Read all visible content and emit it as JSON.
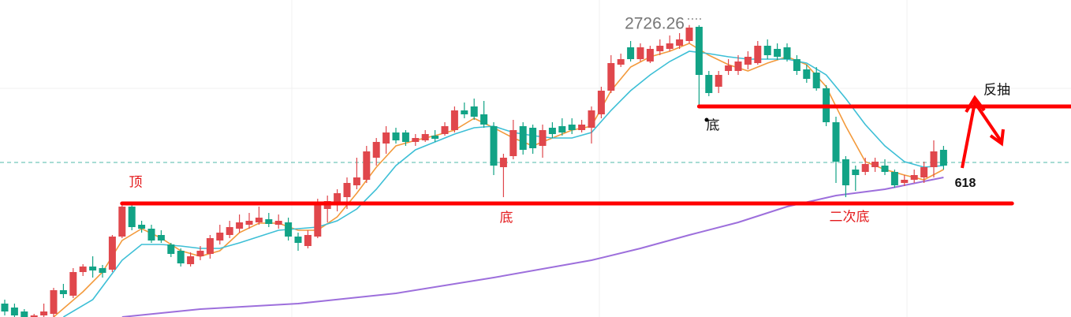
{
  "chart_data": {
    "type": "candlestick",
    "ylim": [
      2356,
      2758
    ],
    "up_color": "#e0474c",
    "down_color": "#12a386",
    "open": [
      2373,
      2368,
      2363,
      2348,
      2358,
      2360,
      2390,
      2383,
      2413,
      2420,
      2418,
      2416,
      2458,
      2496,
      2473,
      2468,
      2460,
      2448,
      2440,
      2423,
      2433,
      2436,
      2453,
      2460,
      2468,
      2473,
      2476,
      2480,
      2473,
      2476,
      2458,
      2446,
      2458,
      2493,
      2500,
      2508,
      2523,
      2530,
      2558,
      2576,
      2590,
      2590,
      2578,
      2580,
      2586,
      2588,
      2593,
      2618,
      2623,
      2613,
      2598,
      2546,
      2560,
      2598,
      2596,
      2573,
      2596,
      2598,
      2600,
      2593,
      2596,
      2613,
      2643,
      2676,
      2698,
      2683,
      2680,
      2693,
      2696,
      2700,
      2706,
      2724,
      2663,
      2648,
      2668,
      2668,
      2676,
      2678,
      2700,
      2696,
      2698,
      2683,
      2670,
      2666,
      2646,
      2603,
      2556,
      2543,
      2540,
      2546,
      2548,
      2540,
      2526,
      2530,
      2533,
      2546,
      2568
    ],
    "high": [
      2378,
      2373,
      2366,
      2360,
      2373,
      2393,
      2398,
      2418,
      2423,
      2433,
      2422,
      2460,
      2500,
      2500,
      2478,
      2473,
      2466,
      2450,
      2443,
      2438,
      2446,
      2460,
      2473,
      2478,
      2486,
      2488,
      2496,
      2488,
      2486,
      2482,
      2463,
      2466,
      2506,
      2510,
      2518,
      2533,
      2558,
      2573,
      2583,
      2598,
      2596,
      2593,
      2588,
      2593,
      2593,
      2603,
      2623,
      2628,
      2633,
      2630,
      2603,
      2563,
      2606,
      2603,
      2600,
      2600,
      2603,
      2608,
      2608,
      2606,
      2623,
      2648,
      2688,
      2690,
      2706,
      2703,
      2700,
      2708,
      2713,
      2716,
      2726.26,
      2726,
      2668,
      2668,
      2683,
      2688,
      2693,
      2706,
      2708,
      2703,
      2703,
      2688,
      2676,
      2673,
      2650,
      2610,
      2560,
      2548,
      2558,
      2558,
      2556,
      2543,
      2536,
      2543,
      2553,
      2580,
      2573
    ],
    "low": [
      2358,
      2354,
      2346,
      2343,
      2356,
      2356,
      2380,
      2380,
      2408,
      2406,
      2406,
      2413,
      2456,
      2466,
      2463,
      2450,
      2450,
      2432,
      2420,
      2420,
      2428,
      2430,
      2448,
      2456,
      2463,
      2468,
      2473,
      2470,
      2468,
      2453,
      2440,
      2443,
      2456,
      2476,
      2490,
      2493,
      2518,
      2526,
      2548,
      2563,
      2576,
      2573,
      2573,
      2578,
      2578,
      2586,
      2590,
      2608,
      2606,
      2596,
      2536,
      2508,
      2556,
      2562,
      2563,
      2558,
      2583,
      2586,
      2588,
      2590,
      2576,
      2608,
      2640,
      2673,
      2680,
      2680,
      2678,
      2688,
      2693,
      2696,
      2703,
      2623,
      2636,
      2640,
      2663,
      2663,
      2670,
      2676,
      2683,
      2682,
      2680,
      2663,
      2653,
      2643,
      2598,
      2526,
      2508,
      2516,
      2536,
      2540,
      2536,
      2520,
      2522,
      2526,
      2526,
      2533,
      2543
    ],
    "close": [
      2363,
      2358,
      2350,
      2358,
      2363,
      2390,
      2385,
      2413,
      2420,
      2415,
      2412,
      2458,
      2496,
      2470,
      2468,
      2453,
      2453,
      2436,
      2424,
      2433,
      2440,
      2456,
      2463,
      2470,
      2476,
      2478,
      2482,
      2474,
      2478,
      2458,
      2450,
      2460,
      2500,
      2503,
      2513,
      2526,
      2533,
      2566,
      2578,
      2590,
      2580,
      2578,
      2583,
      2588,
      2582,
      2598,
      2618,
      2613,
      2610,
      2600,
      2548,
      2558,
      2593,
      2568,
      2570,
      2593,
      2588,
      2590,
      2593,
      2600,
      2618,
      2643,
      2678,
      2683,
      2683,
      2698,
      2696,
      2700,
      2703,
      2708,
      2723,
      2663,
      2640,
      2663,
      2675,
      2680,
      2686,
      2700,
      2688,
      2686,
      2683,
      2668,
      2658,
      2646,
      2603,
      2553,
      2523,
      2536,
      2550,
      2553,
      2540,
      2523,
      2530,
      2536,
      2546,
      2566,
      2548
    ],
    "series": [
      {
        "color": "#f39a3c",
        "x": [
          5,
          8,
          10,
          12,
          14,
          16,
          18,
          20,
          22,
          24,
          26,
          28,
          30,
          32,
          34,
          36,
          38,
          40,
          42,
          44,
          46,
          48,
          50,
          52,
          54,
          56,
          58,
          60,
          62,
          64,
          66,
          68,
          70,
          72,
          74,
          76,
          78,
          80,
          82,
          84,
          86,
          88,
          90,
          92,
          94,
          96
        ],
        "values": [
          2356,
          2388,
          2413,
          2453,
          2468,
          2456,
          2440,
          2433,
          2440,
          2463,
          2475,
          2475,
          2466,
          2466,
          2483,
          2513,
          2546,
          2573,
          2580,
          2586,
          2593,
          2608,
          2596,
          2583,
          2573,
          2583,
          2593,
          2598,
          2643,
          2673,
          2686,
          2693,
          2703,
          2688,
          2676,
          2668,
          2678,
          2686,
          2676,
          2648,
          2598,
          2553,
          2543,
          2536,
          2530,
          2543
        ]
      },
      {
        "color": "#3dbfd6",
        "x": [
          6,
          9,
          12,
          14,
          16,
          18,
          20,
          22,
          24,
          26,
          28,
          30,
          32,
          34,
          36,
          38,
          40,
          42,
          44,
          46,
          48,
          50,
          52,
          54,
          56,
          58,
          60,
          62,
          64,
          66,
          68,
          70,
          72,
          74,
          76,
          78,
          80,
          82,
          84,
          86,
          88,
          90,
          92,
          94,
          96
        ],
        "values": [
          2356,
          2378,
          2428,
          2448,
          2448,
          2446,
          2443,
          2443,
          2450,
          2458,
          2466,
          2468,
          2470,
          2478,
          2493,
          2518,
          2548,
          2568,
          2578,
          2588,
          2596,
          2598,
          2590,
          2586,
          2583,
          2583,
          2590,
          2618,
          2643,
          2663,
          2680,
          2693,
          2690,
          2686,
          2683,
          2683,
          2683,
          2678,
          2663,
          2633,
          2600,
          2573,
          2553,
          2546,
          2548
        ]
      },
      {
        "color": "#9d6fdc",
        "x": [
          12,
          20,
          30,
          40,
          50,
          60,
          65,
          70,
          75,
          80,
          85,
          90,
          96
        ],
        "values": [
          2356,
          2366,
          2373,
          2386,
          2406,
          2428,
          2443,
          2460,
          2476,
          2496,
          2510,
          2518,
          2533
        ]
      }
    ],
    "levels": [
      {
        "value": 2500,
        "start": 12,
        "end": 103,
        "color": "#ff0000"
      },
      {
        "value": 2623,
        "start": 71,
        "end": 109,
        "color": "#ff0000"
      }
    ],
    "current_price": {
      "value": 2552,
      "color": "#4fb8a8"
    },
    "annotations": [
      "顶",
      "底",
      "底",
      "二次底",
      "618",
      "反抽"
    ]
  }
}
